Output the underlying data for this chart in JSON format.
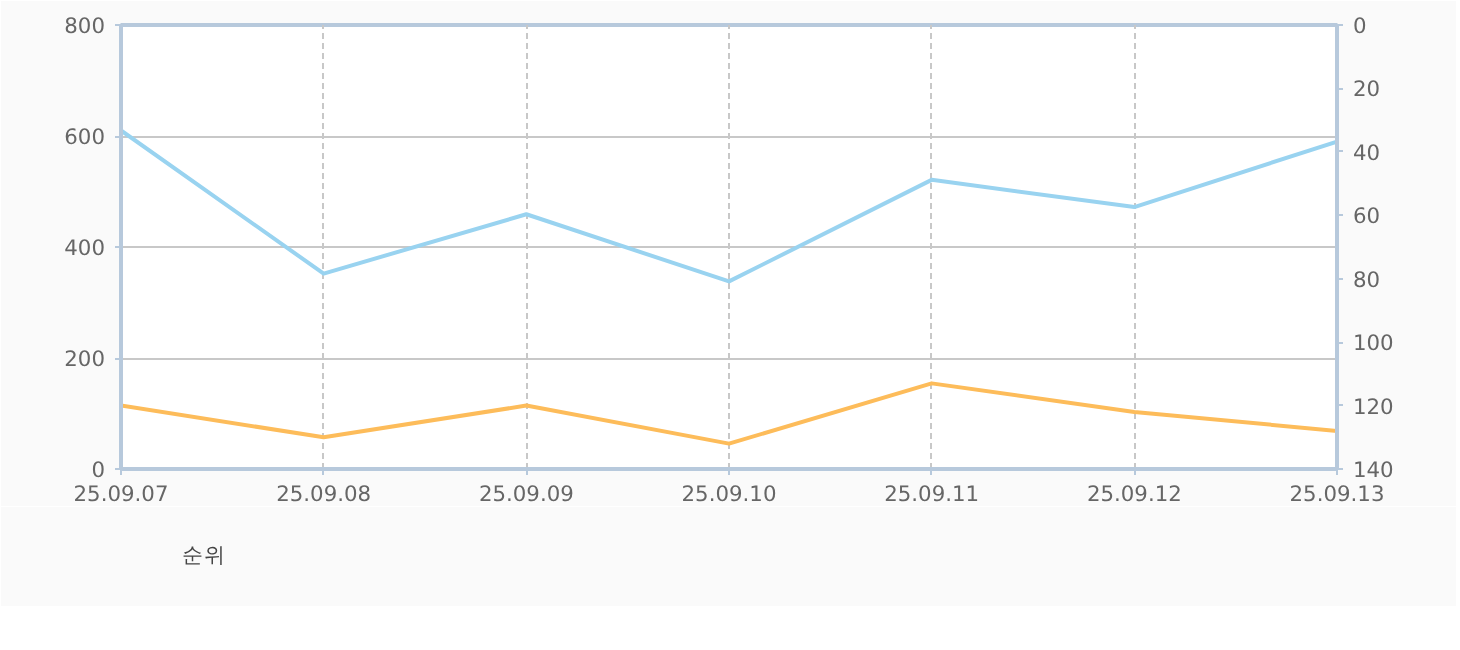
{
  "chart_data": {
    "type": "line",
    "categories": [
      "25.09.07",
      "25.09.08",
      "25.09.09",
      "25.09.10",
      "25.09.11",
      "25.09.12",
      "25.09.13"
    ],
    "series": [
      {
        "color": "#99d3f0",
        "values": [
          610,
          352,
          459,
          338,
          521,
          472,
          590
        ]
      },
      {
        "name": "순위",
        "color": "#fdbc5a",
        "axis": "y2",
        "values": [
          120,
          130,
          120,
          132,
          113,
          122,
          128
        ]
      }
    ],
    "ylim": [
      0,
      800
    ],
    "yticks": [
      0,
      200,
      400,
      600,
      800
    ],
    "y2lim": [
      140,
      0
    ],
    "y2ticks": [
      0,
      20,
      40,
      60,
      80,
      100,
      120,
      140
    ],
    "grid": true,
    "legend": "bottom left",
    "marker": "none",
    "line_style": "solid"
  }
}
